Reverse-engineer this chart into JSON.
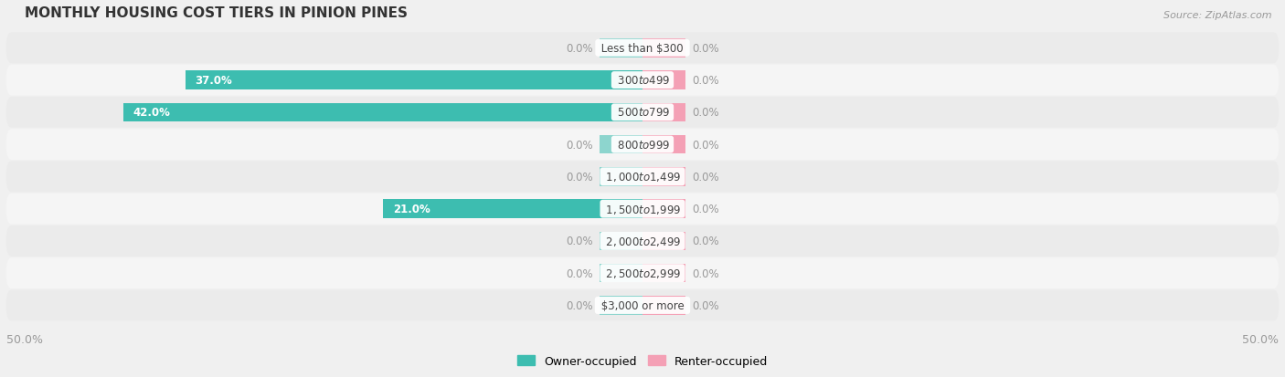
{
  "title": "MONTHLY HOUSING COST TIERS IN PINION PINES",
  "source": "Source: ZipAtlas.com",
  "categories": [
    "Less than $300",
    "$300 to $499",
    "$500 to $799",
    "$800 to $999",
    "$1,000 to $1,499",
    "$1,500 to $1,999",
    "$2,000 to $2,499",
    "$2,500 to $2,999",
    "$3,000 or more"
  ],
  "owner_values": [
    0.0,
    37.0,
    42.0,
    0.0,
    0.0,
    21.0,
    0.0,
    0.0,
    0.0
  ],
  "renter_values": [
    0.0,
    0.0,
    0.0,
    0.0,
    0.0,
    0.0,
    0.0,
    0.0,
    0.0
  ],
  "owner_color": "#3dbdb0",
  "owner_color_stub": "#8dd5ce",
  "renter_color": "#f4a0b5",
  "renter_color_stub": "#f4a0b5",
  "axis_limit": 50.0,
  "bar_height": 0.58,
  "stub_size": 3.5,
  "bg_color": "#f0f0f0",
  "row_even_color": "#ebebeb",
  "row_odd_color": "#f5f5f5",
  "label_color_outside": "#999999",
  "value_label_color_inside": "#ffffff",
  "value_label_color_outside": "#999999",
  "category_text_color": "#444444",
  "axis_tick_color": "#999999",
  "legend_owner": "Owner-occupied",
  "legend_renter": "Renter-occupied",
  "title_color": "#333333",
  "source_color": "#999999"
}
